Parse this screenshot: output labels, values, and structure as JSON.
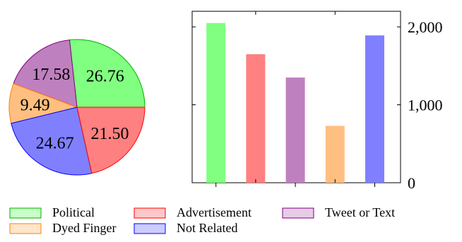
{
  "chart_data": [
    {
      "type": "pie",
      "title": "",
      "slices": [
        {
          "label": "Political",
          "value": 26.76,
          "text": "26.76",
          "color": "#80ff80",
          "stroke": "#00b000"
        },
        {
          "label": "Tweet or Text",
          "value": 17.58,
          "text": "17.58",
          "color": "#bf80bf",
          "stroke": "#800080"
        },
        {
          "label": "Dyed Finger",
          "value": 9.49,
          "text": "9.49",
          "color": "#ffbf80",
          "stroke": "#ff8000"
        },
        {
          "label": "Not Related",
          "value": 24.67,
          "text": "24.67",
          "color": "#8080ff",
          "stroke": "#0000ff"
        },
        {
          "label": "Advertisement",
          "value": 21.5,
          "text": "21.50",
          "color": "#ff8080",
          "stroke": "#ff0000"
        }
      ]
    },
    {
      "type": "bar",
      "title": "",
      "xlabel": "",
      "ylabel": "",
      "categories": [
        "Political",
        "Advertisement",
        "Tweet or Text",
        "Dyed Finger",
        "Not Related"
      ],
      "values": [
        2050,
        1650,
        1350,
        730,
        1890
      ],
      "colors": [
        "#80ff80",
        "#ff8080",
        "#bf80bf",
        "#ffbf80",
        "#8080ff"
      ],
      "ylim": [
        0,
        2200
      ],
      "yticks": [
        0,
        1000,
        2000
      ],
      "ytick_labels": [
        "0",
        "1,000",
        "2,000"
      ],
      "yaxis_side": "right",
      "grid": false
    }
  ],
  "legend": {
    "placement": "bottom",
    "items": [
      {
        "label": "Political",
        "fill": "#c8ffc8",
        "stroke": "#00b000"
      },
      {
        "label": "Advertisement",
        "fill": "#ffc8c8",
        "stroke": "#ff0000"
      },
      {
        "label": "Tweet or Text",
        "fill": "#e6cce6",
        "stroke": "#800080"
      },
      {
        "label": "Dyed Finger",
        "fill": "#ffe6cc",
        "stroke": "#ff8000"
      },
      {
        "label": "Not Related",
        "fill": "#ccccff",
        "stroke": "#0000ff"
      }
    ]
  }
}
